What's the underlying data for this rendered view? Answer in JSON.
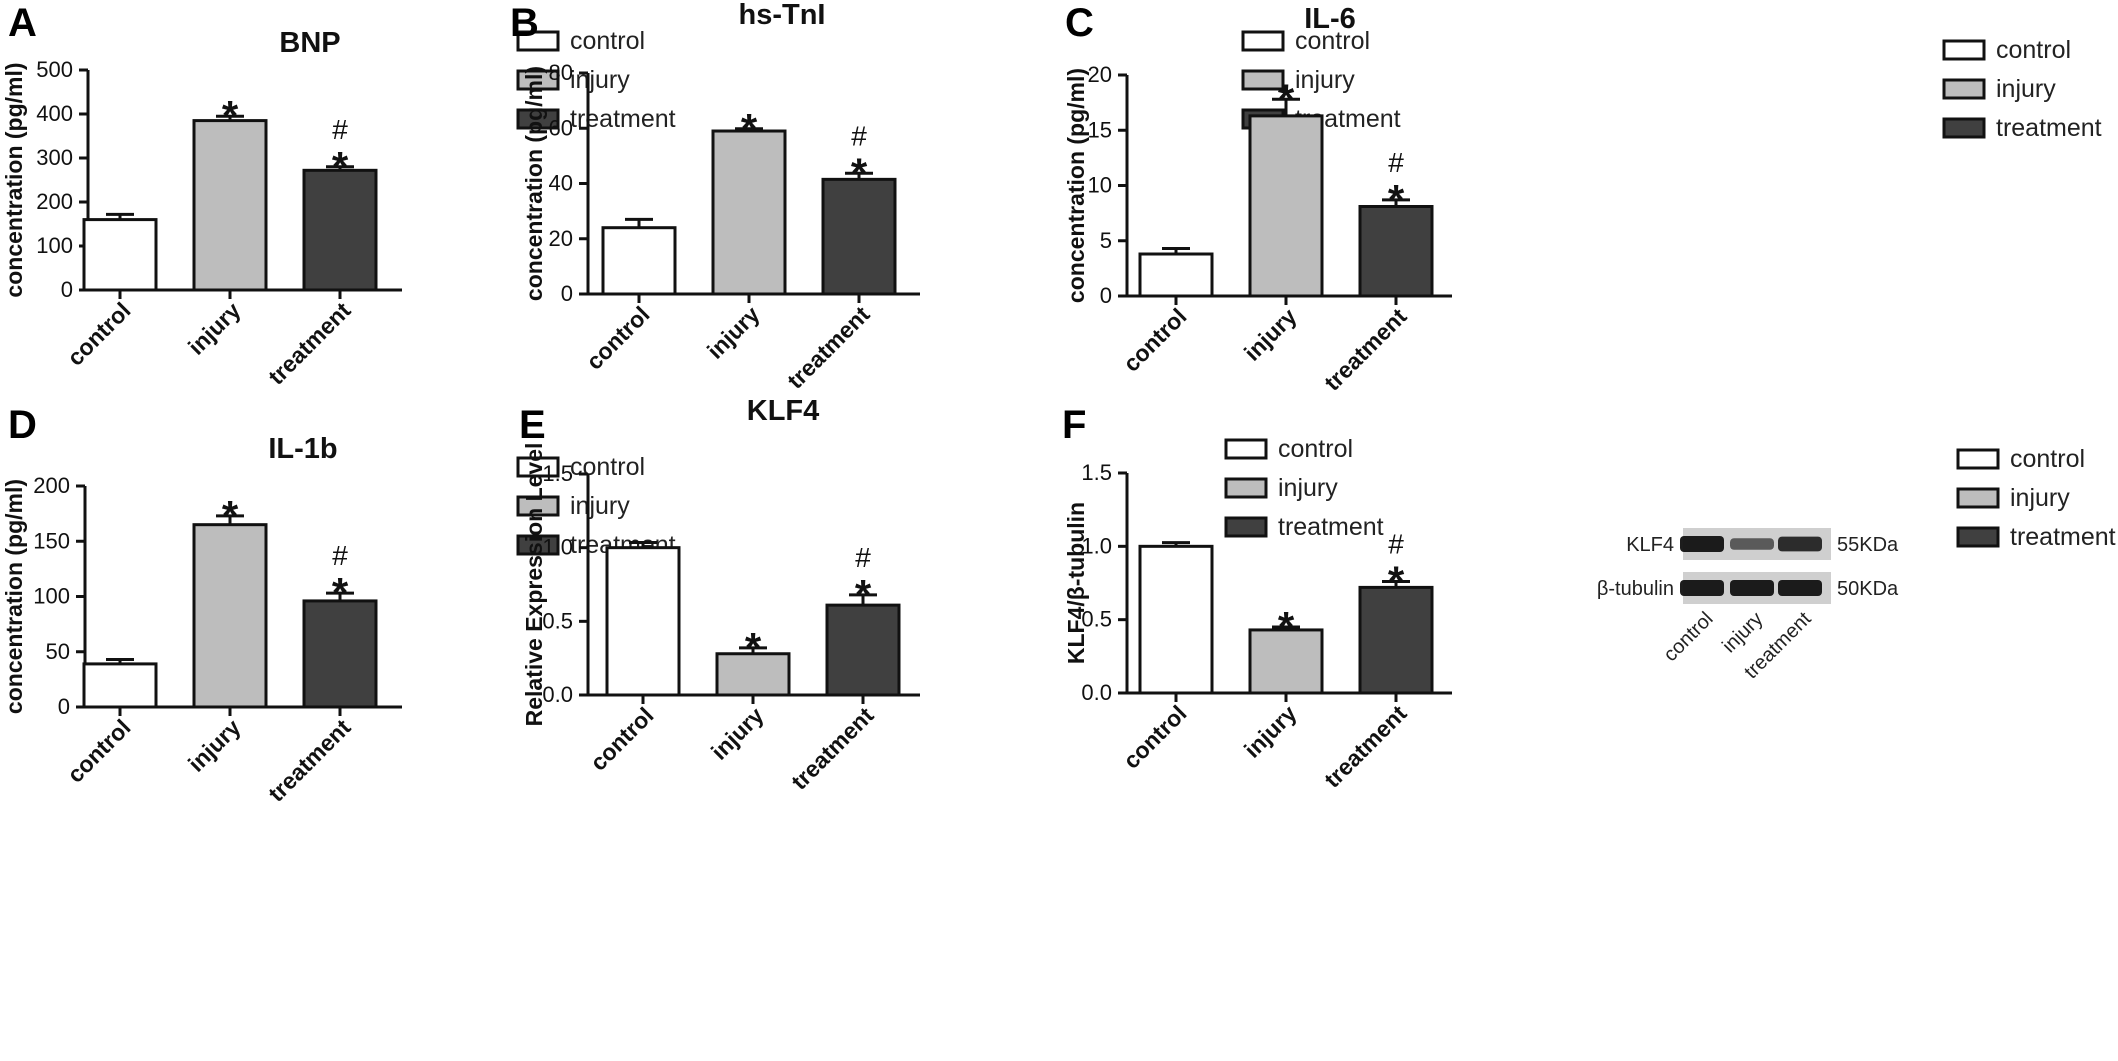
{
  "colors": {
    "control": "#ffffff",
    "injury": "#bdbdbd",
    "treatment": "#404040",
    "stroke": "#111111"
  },
  "chart_data": [
    {
      "letter": "A",
      "type": "bar",
      "title": "BNP",
      "ylabel": "concentration (pg/ml)",
      "ylim": [
        0,
        500
      ],
      "yticks": [
        0,
        100,
        200,
        300,
        400,
        500
      ],
      "ytick_labels": [
        "0",
        "100",
        "200",
        "300",
        "400",
        "500"
      ],
      "categories": [
        "control",
        "injury",
        "treatment"
      ],
      "values": [
        160,
        385,
        272
      ],
      "errors": [
        12,
        10,
        8
      ],
      "marks": [
        [],
        [
          "*"
        ],
        [
          "*",
          "#"
        ]
      ],
      "legend": [
        "control",
        "injury",
        "treatment"
      ]
    },
    {
      "letter": "B",
      "type": "bar",
      "title": "hs-TnI",
      "ylabel": "concentration (pg/ml)",
      "ylim": [
        0,
        80
      ],
      "yticks": [
        0,
        20,
        40,
        60,
        80
      ],
      "ytick_labels": [
        "0",
        "20",
        "40",
        "60",
        "80"
      ],
      "categories": [
        "control",
        "injury",
        "treatment"
      ],
      "values": [
        24,
        59,
        41.5
      ],
      "errors": [
        3,
        0.8,
        2.2
      ],
      "marks": [
        [],
        [
          "*"
        ],
        [
          "*",
          "#"
        ]
      ],
      "legend": [
        "control",
        "injury",
        "treatment"
      ]
    },
    {
      "letter": "C",
      "type": "bar",
      "title": "IL-6",
      "ylabel": "concentration (pg/ml)",
      "ylim": [
        0,
        20
      ],
      "yticks": [
        0,
        5,
        10,
        15,
        20
      ],
      "ytick_labels": [
        "0",
        "5",
        "10",
        "15",
        "20"
      ],
      "categories": [
        "control",
        "injury",
        "treatment"
      ],
      "values": [
        3.8,
        16.3,
        8.1
      ],
      "errors": [
        0.5,
        1.5,
        0.6
      ],
      "marks": [
        [],
        [
          "*"
        ],
        [
          "*",
          "#"
        ]
      ],
      "legend": [
        "control",
        "injury",
        "treatment"
      ]
    },
    {
      "letter": "D",
      "type": "bar",
      "title": "IL-1b",
      "ylabel": "concentration (pg/ml)",
      "ylim": [
        0,
        200
      ],
      "yticks": [
        0,
        50,
        100,
        150,
        200
      ],
      "ytick_labels": [
        "0",
        "50",
        "100",
        "150",
        "200"
      ],
      "categories": [
        "control",
        "injury",
        "treatment"
      ],
      "values": [
        39,
        165,
        96
      ],
      "errors": [
        4,
        8,
        7
      ],
      "marks": [
        [],
        [
          "*"
        ],
        [
          "*",
          "#"
        ]
      ],
      "legend": [
        "control",
        "injury",
        "treatment"
      ]
    },
    {
      "letter": "E",
      "type": "bar",
      "title": "KLF4",
      "ylabel": "Relative Expression Level",
      "ylim": [
        0,
        1.5
      ],
      "yticks": [
        0,
        0.5,
        1,
        1.5
      ],
      "ytick_labels": [
        "0.0",
        "0.5",
        "1.0",
        "1.5"
      ],
      "categories": [
        "control",
        "injury",
        "treatment"
      ],
      "values": [
        1.0,
        0.28,
        0.61
      ],
      "errors": [
        0.035,
        0.04,
        0.07
      ],
      "marks": [
        [],
        [
          "*"
        ],
        [
          "*",
          "#"
        ]
      ],
      "legend": [
        "control",
        "injury",
        "treatment"
      ]
    },
    {
      "letter": "F",
      "type": "bar",
      "title": "",
      "ylabel": "KLF4/β-tubulin",
      "ylim": [
        0,
        1.5
      ],
      "yticks": [
        0,
        0.5,
        1,
        1.5
      ],
      "ytick_labels": [
        "0.0",
        "0.5",
        "1.0",
        "1.5"
      ],
      "categories": [
        "control",
        "injury",
        "treatment"
      ],
      "values": [
        1.0,
        0.43,
        0.72
      ],
      "errors": [
        0.025,
        0.02,
        0.04
      ],
      "marks": [
        [],
        [
          "*"
        ],
        [
          "*",
          "#"
        ]
      ],
      "legend": [
        "control",
        "injury",
        "treatment"
      ]
    }
  ],
  "western_blot": {
    "rows": [
      {
        "label": "KLF4",
        "size": "55KDa",
        "intensity": [
          1.0,
          0.45,
          0.85
        ]
      },
      {
        "label": "β-tubulin",
        "size": "50KDa",
        "intensity": [
          1.0,
          1.0,
          1.0
        ]
      }
    ],
    "lanes": [
      "control",
      "injury",
      "treatment"
    ]
  }
}
